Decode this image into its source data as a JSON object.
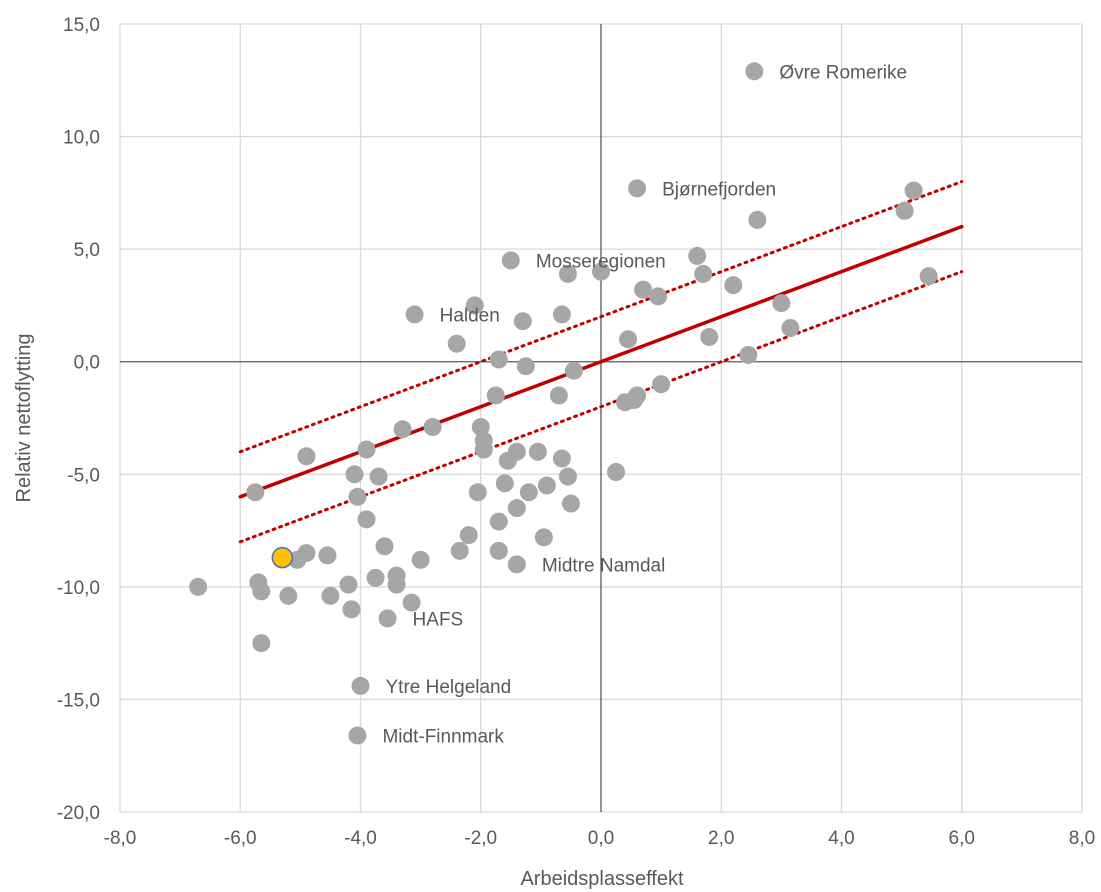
{
  "chart_data": {
    "type": "scatter",
    "xlabel": "Arbeidsplasseffekt",
    "ylabel": "Relativ nettoflytting",
    "xlim": [
      -8,
      8
    ],
    "ylim": [
      -20,
      15
    ],
    "x_ticks": [
      -8,
      -6,
      -4,
      -2,
      0,
      2,
      4,
      6,
      8
    ],
    "y_ticks": [
      15,
      10,
      5,
      0,
      -5,
      -10,
      -15,
      -20
    ],
    "x_tick_labels": [
      "-8,0",
      "-6,0",
      "-4,0",
      "-2,0",
      "0,0",
      "2,0",
      "4,0",
      "6,0",
      "8,0"
    ],
    "y_tick_labels": [
      "15,0",
      "10,0",
      "5,0",
      "0,0",
      "-5,0",
      "-10,0",
      "-15,0",
      "-20,0"
    ],
    "grid": true,
    "colors": {
      "point": "#a6a6a6",
      "highlight": "#ffc000",
      "highlight_edge": "#4472c4",
      "trend": "#c00000",
      "grid": "#d9d9d9",
      "axis": "#595959"
    },
    "trend_line": {
      "x": [
        -6,
        6
      ],
      "y": [
        -6,
        6
      ]
    },
    "upper_band": {
      "x": [
        -6,
        6
      ],
      "y": [
        -4,
        8
      ]
    },
    "lower_band": {
      "x": [
        -6,
        6
      ],
      "y": [
        -8,
        4
      ]
    },
    "highlight_point": {
      "x": -5.3,
      "y": -8.7
    },
    "labeled_points": [
      {
        "x": 2.55,
        "y": 12.9,
        "label": "Øvre Romerike"
      },
      {
        "x": 0.6,
        "y": 7.7,
        "label": "Bjørnefjorden"
      },
      {
        "x": -1.5,
        "y": 4.5,
        "label": "Mosseregionen"
      },
      {
        "x": -3.1,
        "y": 2.1,
        "label": "Halden"
      },
      {
        "x": -1.4,
        "y": -9.0,
        "label": "Midtre Namdal"
      },
      {
        "x": -3.55,
        "y": -11.4,
        "label": "HAFS"
      },
      {
        "x": -4.0,
        "y": -14.4,
        "label": "Ytre Helgeland"
      },
      {
        "x": -4.05,
        "y": -16.6,
        "label": "Midt-Finnmark"
      }
    ],
    "points": [
      [
        -6.7,
        -10.0
      ],
      [
        -5.75,
        -5.8
      ],
      [
        -5.7,
        -9.8
      ],
      [
        -5.65,
        -10.2
      ],
      [
        -5.65,
        -12.5
      ],
      [
        -5.2,
        -10.4
      ],
      [
        -5.05,
        -8.8
      ],
      [
        -4.9,
        -8.5
      ],
      [
        -4.9,
        -4.2
      ],
      [
        -4.55,
        -8.6
      ],
      [
        -4.5,
        -10.4
      ],
      [
        -4.2,
        -9.9
      ],
      [
        -4.15,
        -11.0
      ],
      [
        -4.1,
        -5.0
      ],
      [
        -4.05,
        -6.0
      ],
      [
        -3.9,
        -7.0
      ],
      [
        -3.9,
        -3.9
      ],
      [
        -3.75,
        -9.6
      ],
      [
        -3.7,
        -5.1
      ],
      [
        -3.6,
        -8.2
      ],
      [
        -3.4,
        -9.9
      ],
      [
        -3.4,
        -9.5
      ],
      [
        -3.3,
        -3.0
      ],
      [
        -3.15,
        -10.7
      ],
      [
        -3.0,
        -8.8
      ],
      [
        -2.8,
        -2.9
      ],
      [
        -2.4,
        0.8
      ],
      [
        -2.35,
        -8.4
      ],
      [
        -2.2,
        -7.7
      ],
      [
        -2.1,
        2.5
      ],
      [
        -2.05,
        -5.8
      ],
      [
        -2.0,
        -2.9
      ],
      [
        -1.95,
        -3.9
      ],
      [
        -1.95,
        -3.5
      ],
      [
        -1.7,
        -8.4
      ],
      [
        -1.7,
        0.1
      ],
      [
        -1.75,
        -1.5
      ],
      [
        -1.7,
        -7.1
      ],
      [
        -1.6,
        -5.4
      ],
      [
        -1.55,
        -4.4
      ],
      [
        -1.4,
        -6.5
      ],
      [
        -1.4,
        -4.0
      ],
      [
        -1.3,
        1.8
      ],
      [
        -1.25,
        -0.2
      ],
      [
        -1.2,
        -5.8
      ],
      [
        -1.05,
        -4.0
      ],
      [
        -0.95,
        -7.8
      ],
      [
        -0.9,
        -5.5
      ],
      [
        -0.7,
        -1.5
      ],
      [
        -0.65,
        2.1
      ],
      [
        -0.65,
        -4.3
      ],
      [
        -0.55,
        -5.1
      ],
      [
        -0.55,
        3.9
      ],
      [
        -0.5,
        -6.3
      ],
      [
        -0.45,
        -0.4
      ],
      [
        0.0,
        4.0
      ],
      [
        0.25,
        -4.9
      ],
      [
        0.4,
        -1.8
      ],
      [
        0.45,
        1.0
      ],
      [
        0.55,
        -1.7
      ],
      [
        0.6,
        -1.5
      ],
      [
        0.7,
        3.2
      ],
      [
        0.95,
        2.9
      ],
      [
        1.0,
        -1.0
      ],
      [
        1.6,
        4.7
      ],
      [
        1.7,
        3.9
      ],
      [
        1.8,
        1.1
      ],
      [
        2.2,
        3.4
      ],
      [
        2.45,
        0.3
      ],
      [
        2.6,
        6.3
      ],
      [
        3.0,
        2.6
      ],
      [
        3.15,
        1.5
      ],
      [
        5.05,
        6.7
      ],
      [
        5.2,
        7.6
      ],
      [
        5.45,
        3.8
      ]
    ]
  }
}
